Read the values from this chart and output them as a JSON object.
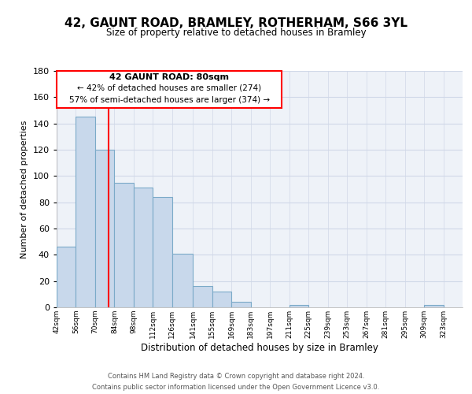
{
  "title": "42, GAUNT ROAD, BRAMLEY, ROTHERHAM, S66 3YL",
  "subtitle": "Size of property relative to detached houses in Bramley",
  "xlabel": "Distribution of detached houses by size in Bramley",
  "ylabel": "Number of detached properties",
  "bar_left_edges": [
    42,
    56,
    70,
    84,
    98,
    112,
    126,
    141,
    155,
    169,
    183,
    197,
    211,
    225,
    239,
    253,
    267,
    281,
    295,
    309
  ],
  "bar_heights": [
    46,
    145,
    120,
    95,
    91,
    84,
    41,
    16,
    12,
    4,
    0,
    0,
    2,
    0,
    0,
    0,
    0,
    0,
    0,
    2
  ],
  "bar_widths": [
    14,
    14,
    14,
    14,
    14,
    14,
    15,
    14,
    14,
    14,
    14,
    14,
    14,
    14,
    14,
    14,
    14,
    14,
    14,
    14
  ],
  "tick_labels": [
    "42sqm",
    "56sqm",
    "70sqm",
    "84sqm",
    "98sqm",
    "112sqm",
    "126sqm",
    "141sqm",
    "155sqm",
    "169sqm",
    "183sqm",
    "197sqm",
    "211sqm",
    "225sqm",
    "239sqm",
    "253sqm",
    "267sqm",
    "281sqm",
    "295sqm",
    "309sqm",
    "323sqm"
  ],
  "bar_color": "#c8d8eb",
  "bar_edge_color": "#7baac8",
  "vline_x": 80,
  "vline_color": "red",
  "annotation_title": "42 GAUNT ROAD: 80sqm",
  "annotation_line1": "← 42% of detached houses are smaller (274)",
  "annotation_line2": "57% of semi-detached houses are larger (374) →",
  "ylim": [
    0,
    180
  ],
  "yticks": [
    0,
    20,
    40,
    60,
    80,
    100,
    120,
    140,
    160,
    180
  ],
  "xlim_left": 42,
  "xlim_right": 337,
  "footer1": "Contains HM Land Registry data © Crown copyright and database right 2024.",
  "footer2": "Contains public sector information licensed under the Open Government Licence v3.0.",
  "background_color": "#eef2f8",
  "grid_color": "#d0d8e8"
}
